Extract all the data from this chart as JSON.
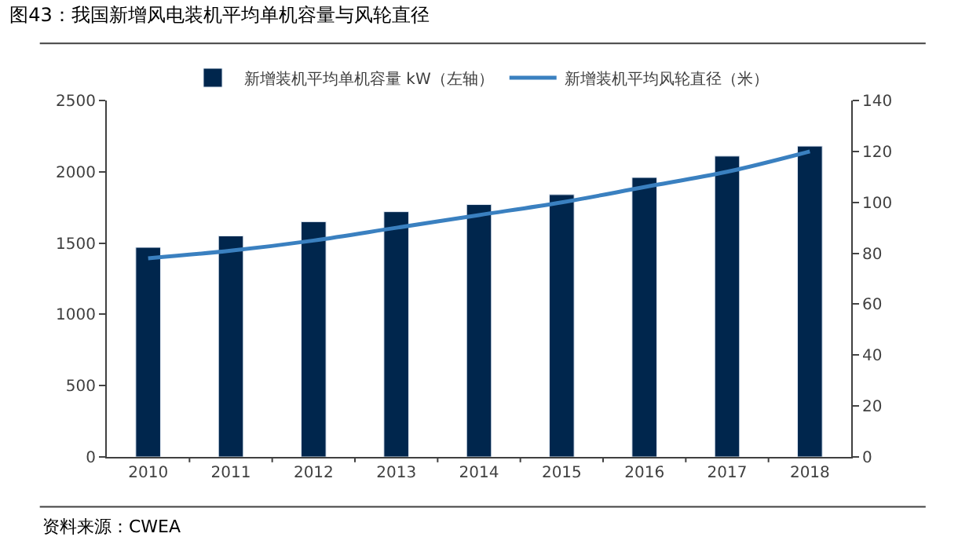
{
  "chart_data": {
    "type": "bar",
    "title": "图43：我国新增风电装机平均单机容量与风轮直径",
    "categories": [
      "2010",
      "2011",
      "2012",
      "2013",
      "2014",
      "2015",
      "2016",
      "2017",
      "2018"
    ],
    "series": [
      {
        "name": "新增装机平均单机容量 kW（左轴）",
        "color": "#00264d",
        "values": [
          1470,
          1550,
          1650,
          1720,
          1770,
          1840,
          1960,
          2110,
          2180
        ]
      },
      {
        "name": "新增装机平均风轮直径（米）",
        "type": "line",
        "axis": "y2",
        "color": "#3a80c0",
        "values": [
          78,
          81,
          85,
          90,
          95,
          100,
          106,
          112,
          120
        ]
      }
    ],
    "ylim": [
      0,
      2500
    ],
    "yticks": [
      0,
      500,
      1000,
      1500,
      2000,
      2500
    ],
    "y2lim": [
      0,
      140
    ],
    "y2ticks": [
      0,
      20,
      40,
      60,
      80,
      100,
      120,
      140
    ],
    "legend": "top",
    "annotations": [
      "资料来源：CWEA"
    ]
  }
}
